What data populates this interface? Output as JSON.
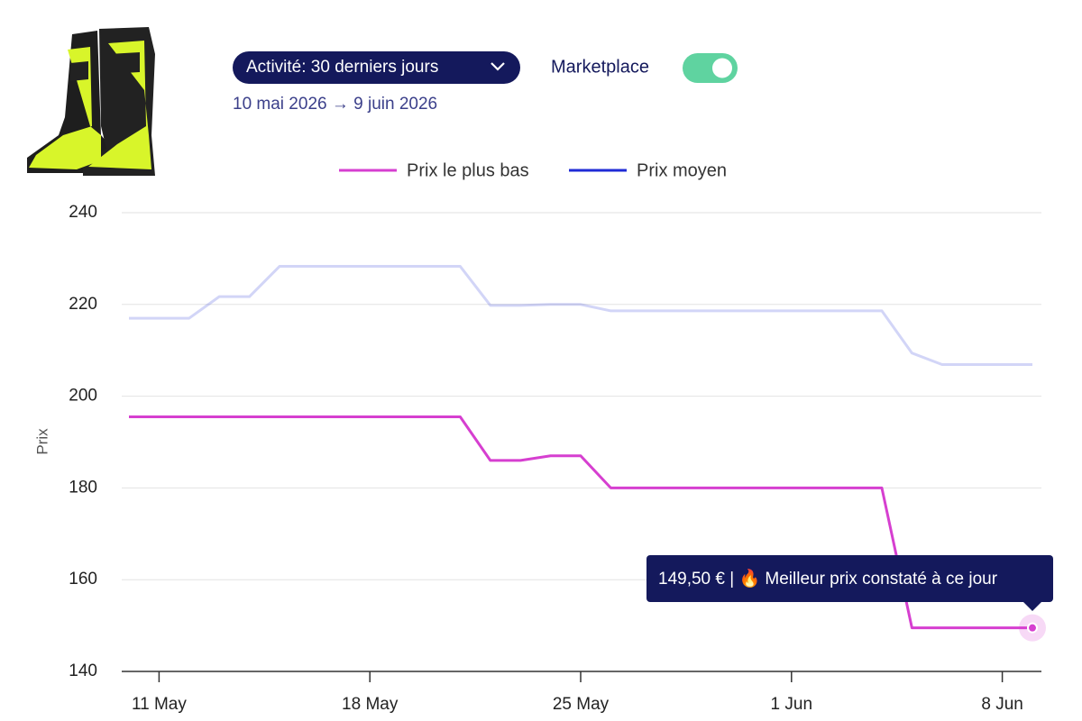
{
  "header": {
    "period": "Activité: 30 derniers jours",
    "marketplace": "Marketplace",
    "date_range": "10 mai 2026 → 9 juin 2026"
  },
  "chart_data": {
    "type": "line",
    "y_label": "Prix",
    "categories": [
      null,
      "11 May",
      null,
      null,
      null,
      null,
      null,
      null,
      "18 May",
      null,
      null,
      null,
      null,
      null,
      null,
      "25 May",
      null,
      null,
      null,
      null,
      null,
      null,
      "1 Jun",
      null,
      null,
      null,
      null,
      null,
      null,
      "8 Jun",
      null
    ],
    "series": [
      {
        "name": "Prix le plus bas",
        "color": "#d63fd0",
        "values": [
          195.5,
          195.5,
          195.5,
          195.5,
          195.5,
          195.5,
          195.5,
          195.5,
          195.5,
          195.5,
          195.5,
          195.5,
          186,
          186,
          187,
          187,
          180,
          180,
          180,
          180,
          180,
          180,
          180,
          180,
          180,
          180,
          149.5,
          149.5,
          149.5,
          149.5,
          149.5
        ]
      },
      {
        "name": "Prix moyen",
        "color": "#1f2bd6",
        "values": [
          217,
          217,
          217,
          221.7,
          221.7,
          228.3,
          228.3,
          228.3,
          228.3,
          228.3,
          228.3,
          228.3,
          219.8,
          219.8,
          220,
          220,
          218.6,
          218.6,
          218.6,
          218.6,
          218.6,
          218.6,
          218.6,
          218.6,
          218.6,
          218.6,
          209.4,
          206.9,
          206.9,
          206.9,
          206.9
        ]
      }
    ],
    "ylim": [
      140,
      240
    ],
    "yticks": [
      140,
      160,
      180,
      200,
      220,
      240
    ],
    "grid": true,
    "tooltip": "149,50 € | 🔥 Meilleur prix constaté à ce jour"
  }
}
